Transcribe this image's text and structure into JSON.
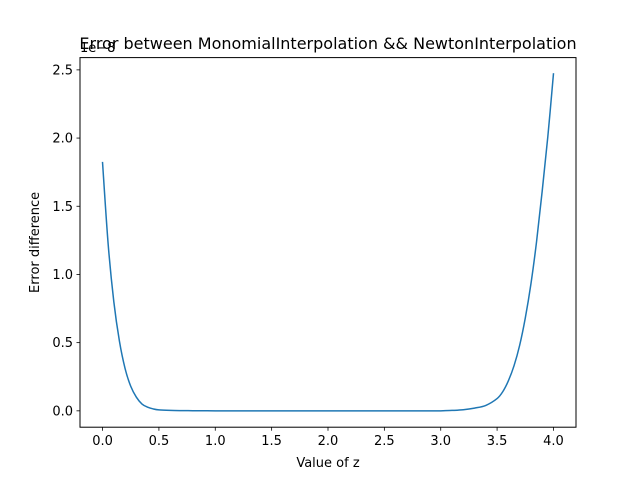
{
  "chart_data": {
    "type": "line",
    "title": "Error between MonomialInterpolation && NewtonInterpolation",
    "xlabel": "Value of z",
    "ylabel": "Error difference",
    "y_offset_label": "1e−8",
    "xlim": [
      -0.2,
      4.2
    ],
    "ylim": [
      -0.12,
      2.59
    ],
    "xticks": [
      0.0,
      0.5,
      1.0,
      1.5,
      2.0,
      2.5,
      3.0,
      3.5,
      4.0
    ],
    "xtick_labels": [
      "0.0",
      "0.5",
      "1.0",
      "1.5",
      "2.0",
      "2.5",
      "3.0",
      "3.5",
      "4.0"
    ],
    "yticks": [
      0.0,
      0.5,
      1.0,
      1.5,
      2.0,
      2.5
    ],
    "ytick_labels": [
      "0.0",
      "0.5",
      "1.0",
      "1.5",
      "2.0",
      "2.5"
    ],
    "grid": false,
    "series": [
      {
        "color": "#1f77b4",
        "x": [
          0.0,
          0.05,
          0.1,
          0.15,
          0.2,
          0.25,
          0.3,
          0.35,
          0.4,
          0.45,
          0.5,
          0.6,
          0.7,
          0.8,
          0.9,
          1.0,
          1.25,
          1.5,
          1.75,
          2.0,
          2.25,
          2.5,
          2.75,
          3.0,
          3.1,
          3.2,
          3.3,
          3.4,
          3.5,
          3.55,
          3.6,
          3.65,
          3.7,
          3.75,
          3.8,
          3.85,
          3.9,
          3.95,
          4.0
        ],
        "y": [
          1.82,
          1.22,
          0.8,
          0.51,
          0.31,
          0.18,
          0.1,
          0.05,
          0.027,
          0.014,
          0.007,
          0.003,
          0.0015,
          0.001,
          0.0005,
          0.0,
          0.0,
          0.0,
          0.0,
          0.0,
          0.0,
          0.0,
          0.0,
          0.0,
          0.003,
          0.008,
          0.02,
          0.04,
          0.09,
          0.14,
          0.22,
          0.33,
          0.48,
          0.68,
          0.93,
          1.24,
          1.61,
          2.01,
          2.47
        ]
      }
    ]
  }
}
